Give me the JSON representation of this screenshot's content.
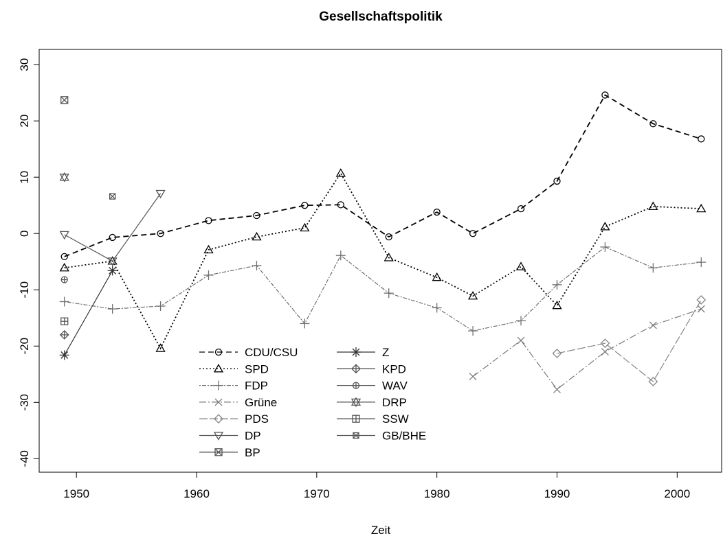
{
  "chart_data": {
    "type": "line",
    "title": "Gesellschaftspolitik",
    "x_label": "Zeit",
    "x": [
      1949,
      1953,
      1957,
      1961,
      1965,
      1969,
      1972,
      1976,
      1980,
      1983,
      1987,
      1990,
      1994,
      1998,
      2002
    ],
    "xlim": [
      1946.9,
      2003.7
    ],
    "xticks": [
      1950,
      1960,
      1970,
      1980,
      1990,
      2000
    ],
    "ylim": [
      -42.4,
      32.7
    ],
    "yticks": [
      -40,
      -30,
      -20,
      -10,
      0,
      10,
      20,
      30
    ],
    "series": [
      {
        "name": "CDU/CSU",
        "color": "#000000",
        "dash": "8,5",
        "marker": "circle",
        "values": [
          -4.1,
          -0.7,
          0,
          2.3,
          3.2,
          5.0,
          5.1,
          -0.6,
          3.8,
          0,
          4.4,
          9.3,
          24.6,
          19.5,
          16.8
        ]
      },
      {
        "name": "SPD",
        "color": "#000000",
        "dash": "2,3",
        "marker": "triangle",
        "values": [
          -6.1,
          -4.9,
          -20.4,
          -2.9,
          -0.6,
          1.0,
          10.7,
          -4.3,
          -7.8,
          -11.1,
          -5.9,
          -12.8,
          1.2,
          4.8,
          4.4
        ]
      },
      {
        "name": "FDP",
        "color": "#6e6e6e",
        "dash": "2,2,6,2",
        "marker": "plus",
        "values": [
          -12.1,
          -13.4,
          -12.9,
          -7.4,
          -5.7,
          -16.0,
          -3.9,
          -10.6,
          -13.2,
          -17.3,
          -15.5,
          -9.1,
          -2.4,
          -6.1,
          -5.1
        ]
      },
      {
        "name": "Grüne",
        "color": "#7a7a7a",
        "dash": "10,3,2,3",
        "marker": "cross",
        "values": [
          null,
          null,
          null,
          null,
          null,
          null,
          null,
          null,
          null,
          -25.4,
          -19.0,
          -27.7,
          -21.0,
          -16.3,
          -13.4
        ]
      },
      {
        "name": "PDS",
        "color": "#858585",
        "dash": "12,3",
        "marker": "diamond",
        "values": [
          null,
          null,
          null,
          null,
          null,
          null,
          null,
          null,
          null,
          null,
          null,
          -21.3,
          -19.5,
          -26.3,
          -11.8
        ]
      },
      {
        "name": "DP",
        "color": "#555555",
        "dash": "",
        "marker": "down-triangle",
        "values": [
          -0.2,
          -4.9,
          7.1,
          null,
          null,
          null,
          null,
          null,
          null,
          null,
          null,
          null,
          null,
          null,
          null
        ]
      },
      {
        "name": "BP",
        "color": "#555555",
        "dash": "",
        "marker": "square-cross",
        "values": [
          23.7,
          null,
          null,
          null,
          null,
          null,
          null,
          null,
          null,
          null,
          null,
          null,
          null,
          null,
          null
        ]
      },
      {
        "name": "Z",
        "color": "#333333",
        "dash": "",
        "marker": "asterisk",
        "values": [
          -21.6,
          -6.6,
          null,
          null,
          null,
          null,
          null,
          null,
          null,
          null,
          null,
          null,
          null,
          null,
          null
        ]
      },
      {
        "name": "KPD",
        "color": "#555555",
        "dash": "",
        "marker": "diamond-plus",
        "values": [
          -18.0,
          null,
          null,
          null,
          null,
          null,
          null,
          null,
          null,
          null,
          null,
          null,
          null,
          null,
          null
        ]
      },
      {
        "name": "WAV",
        "color": "#555555",
        "dash": "",
        "marker": "circle-plus",
        "values": [
          -8.2,
          null,
          null,
          null,
          null,
          null,
          null,
          null,
          null,
          null,
          null,
          null,
          null,
          null,
          null
        ]
      },
      {
        "name": "DRP",
        "color": "#555555",
        "dash": "",
        "marker": "star",
        "values": [
          10.0,
          null,
          null,
          null,
          null,
          null,
          null,
          null,
          null,
          null,
          null,
          null,
          null,
          null,
          null
        ]
      },
      {
        "name": "SSW",
        "color": "#555555",
        "dash": "",
        "marker": "square-plus",
        "values": [
          -15.6,
          null,
          null,
          null,
          null,
          null,
          null,
          null,
          null,
          null,
          null,
          null,
          null,
          null,
          null
        ]
      },
      {
        "name": "GB/BHE",
        "color": "#555555",
        "dash": "",
        "marker": "small-square-cross",
        "values": [
          null,
          6.6,
          null,
          null,
          null,
          null,
          null,
          null,
          null,
          null,
          null,
          null,
          null,
          null,
          null
        ]
      }
    ]
  }
}
